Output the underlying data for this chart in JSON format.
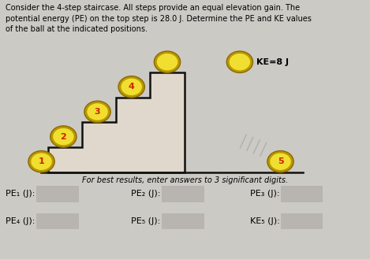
{
  "title_text": "Consider the 4-step staircase. All steps provide an equal elevation gain. The\npotential energy (PE) on the top step is 28.0 J. Determine the PE and KE values\nof the ball at the indicated positions.",
  "subtitle": "For best results, enter answers to 3 significant digits.",
  "ke_label": "KE=8 J",
  "ball_face": "#f0df30",
  "ball_outer": "#b89800",
  "ball_edge": "#8b6900",
  "ball_number_color": "#cc2200",
  "bg_color": "#cccac5",
  "stair_color": "#111111",
  "stair_face": "#e0d8cc",
  "answer_box_color": "#b8b5b0",
  "form_labels": [
    [
      "PE₁ (J):",
      "PE₂ (J):",
      "PE₃ (J):"
    ],
    [
      "PE₄ (J):",
      "PE₅ (J):",
      "KE₅ (J):"
    ]
  ],
  "motion_lines_count": 4
}
